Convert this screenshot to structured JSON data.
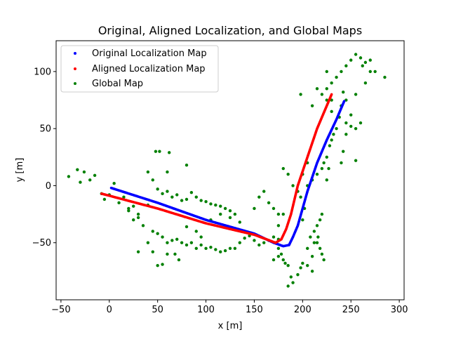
{
  "chart_data": {
    "type": "scatter",
    "title": "Original, Aligned Localization, and Global Maps",
    "xlabel": "x [m]",
    "ylabel": "y [m]",
    "xlim": [
      -55,
      305
    ],
    "ylim": [
      -100,
      127
    ],
    "xticks": [
      -50,
      0,
      50,
      100,
      150,
      200,
      250,
      300
    ],
    "yticks": [
      -50,
      0,
      50,
      100
    ],
    "grid": false,
    "legend_position": "upper-left",
    "series": [
      {
        "name": "Original Localization Map",
        "color": "#0000ff",
        "path": [
          [
            2,
            -2
          ],
          [
            50,
            -15
          ],
          [
            100,
            -30
          ],
          [
            150,
            -42
          ],
          [
            170,
            -50
          ],
          [
            180,
            -53
          ],
          [
            186,
            -52
          ],
          [
            190,
            -45
          ],
          [
            195,
            -35
          ],
          [
            205,
            -5
          ],
          [
            215,
            20
          ],
          [
            225,
            40
          ],
          [
            235,
            58
          ],
          [
            243,
            74
          ]
        ]
      },
      {
        "name": "Aligned Localization Map",
        "color": "#ff0000",
        "path": [
          [
            -8,
            -7
          ],
          [
            50,
            -20
          ],
          [
            100,
            -33
          ],
          [
            150,
            -43
          ],
          [
            172,
            -50
          ],
          [
            178,
            -47
          ],
          [
            183,
            -38
          ],
          [
            188,
            -25
          ],
          [
            195,
            0
          ],
          [
            205,
            25
          ],
          [
            215,
            50
          ],
          [
            225,
            70
          ],
          [
            230,
            80
          ]
        ]
      },
      {
        "name": "Global Map",
        "color": "#008000",
        "points": [
          [
            -42,
            8
          ],
          [
            -33,
            14
          ],
          [
            -26,
            12
          ],
          [
            -15,
            9
          ],
          [
            -20,
            5
          ],
          [
            -30,
            3
          ],
          [
            -8,
            -7
          ],
          [
            -5,
            -12
          ],
          [
            0,
            -8
          ],
          [
            5,
            2
          ],
          [
            10,
            -15
          ],
          [
            15,
            -10
          ],
          [
            20,
            -20
          ],
          [
            25,
            -18
          ],
          [
            30,
            -25
          ],
          [
            40,
            -17
          ],
          [
            45,
            5
          ],
          [
            50,
            -3
          ],
          [
            55,
            -7
          ],
          [
            60,
            -5
          ],
          [
            65,
            -10
          ],
          [
            70,
            -8
          ],
          [
            75,
            -13
          ],
          [
            80,
            -12
          ],
          [
            85,
            -6
          ],
          [
            90,
            -10
          ],
          [
            95,
            -13
          ],
          [
            100,
            -14
          ],
          [
            105,
            -16
          ],
          [
            110,
            -17
          ],
          [
            115,
            -18
          ],
          [
            120,
            -20
          ],
          [
            125,
            -22
          ],
          [
            130,
            -25
          ],
          [
            48,
            30
          ],
          [
            52,
            30
          ],
          [
            62,
            29
          ],
          [
            40,
            12
          ],
          [
            60,
            12
          ],
          [
            80,
            18
          ],
          [
            30,
            -28
          ],
          [
            35,
            -35
          ],
          [
            45,
            -40
          ],
          [
            50,
            -42
          ],
          [
            55,
            -45
          ],
          [
            60,
            -50
          ],
          [
            65,
            -48
          ],
          [
            70,
            -47
          ],
          [
            75,
            -50
          ],
          [
            80,
            -52
          ],
          [
            85,
            -50
          ],
          [
            90,
            -55
          ],
          [
            95,
            -52
          ],
          [
            100,
            -55
          ],
          [
            105,
            -54
          ],
          [
            110,
            -56
          ],
          [
            115,
            -58
          ],
          [
            120,
            -57
          ],
          [
            125,
            -55
          ],
          [
            130,
            -55
          ],
          [
            135,
            -50
          ],
          [
            140,
            -46
          ],
          [
            145,
            -44
          ],
          [
            150,
            -48
          ],
          [
            155,
            -52
          ],
          [
            160,
            -50
          ],
          [
            165,
            -48
          ],
          [
            170,
            -45
          ],
          [
            175,
            -47
          ],
          [
            40,
            -50
          ],
          [
            45,
            -58
          ],
          [
            30,
            -58
          ],
          [
            50,
            -70
          ],
          [
            55,
            -69
          ],
          [
            60,
            -60
          ],
          [
            68,
            -60
          ],
          [
            72,
            -65
          ],
          [
            80,
            -36
          ],
          [
            90,
            -40
          ],
          [
            95,
            -45
          ],
          [
            20,
            -22
          ],
          [
            25,
            -30
          ],
          [
            105,
            -30
          ],
          [
            115,
            -25
          ],
          [
            125,
            -28
          ],
          [
            135,
            -32
          ],
          [
            150,
            -20
          ],
          [
            155,
            -10
          ],
          [
            160,
            -5
          ],
          [
            165,
            -15
          ],
          [
            170,
            -20
          ],
          [
            175,
            -25
          ],
          [
            180,
            -25
          ],
          [
            180,
            15
          ],
          [
            185,
            10
          ],
          [
            190,
            0
          ],
          [
            195,
            -5
          ],
          [
            200,
            10
          ],
          [
            205,
            20
          ],
          [
            175,
            -35
          ],
          [
            175,
            -55
          ],
          [
            178,
            -60
          ],
          [
            180,
            -65
          ],
          [
            182,
            -68
          ],
          [
            185,
            -70
          ],
          [
            175,
            -62
          ],
          [
            170,
            -65
          ],
          [
            188,
            -80
          ],
          [
            185,
            -88
          ],
          [
            190,
            -85
          ],
          [
            195,
            -78
          ],
          [
            198,
            -72
          ],
          [
            200,
            -68
          ],
          [
            205,
            -70
          ],
          [
            210,
            -62
          ],
          [
            205,
            -55
          ],
          [
            208,
            -45
          ],
          [
            212,
            -40
          ],
          [
            215,
            -35
          ],
          [
            218,
            -30
          ],
          [
            220,
            -25
          ],
          [
            215,
            -50
          ],
          [
            218,
            -55
          ],
          [
            220,
            -60
          ],
          [
            222,
            -65
          ],
          [
            210,
            -75
          ],
          [
            212,
            -50
          ],
          [
            216,
            -45
          ],
          [
            200,
            -30
          ],
          [
            202,
            -20
          ],
          [
            198,
            -10
          ],
          [
            205,
            0
          ],
          [
            210,
            5
          ],
          [
            215,
            10
          ],
          [
            220,
            15
          ],
          [
            222,
            20
          ],
          [
            225,
            25
          ],
          [
            228,
            35
          ],
          [
            230,
            40
          ],
          [
            232,
            45
          ],
          [
            235,
            50
          ],
          [
            225,
            5
          ],
          [
            227,
            15
          ],
          [
            245,
            55
          ],
          [
            250,
            52
          ],
          [
            255,
            50
          ],
          [
            260,
            55
          ],
          [
            250,
            62
          ],
          [
            245,
            45
          ],
          [
            242,
            30
          ],
          [
            240,
            20
          ],
          [
            255,
            22
          ],
          [
            210,
            70
          ],
          [
            215,
            85
          ],
          [
            220,
            80
          ],
          [
            225,
            75
          ],
          [
            230,
            90
          ],
          [
            235,
            95
          ],
          [
            240,
            100
          ],
          [
            245,
            105
          ],
          [
            250,
            110
          ],
          [
            255,
            115
          ],
          [
            260,
            112
          ],
          [
            265,
            108
          ],
          [
            270,
            100
          ],
          [
            275,
            100
          ],
          [
            285,
            95
          ],
          [
            270,
            110
          ],
          [
            262,
            105
          ],
          [
            265,
            90
          ],
          [
            255,
            80
          ],
          [
            245,
            75
          ],
          [
            242,
            82
          ],
          [
            225,
            85
          ],
          [
            230,
            75
          ],
          [
            198,
            80
          ],
          [
            225,
            100
          ],
          [
            240,
            70
          ],
          [
            238,
            60
          ],
          [
            230,
            65
          ]
        ]
      }
    ]
  }
}
